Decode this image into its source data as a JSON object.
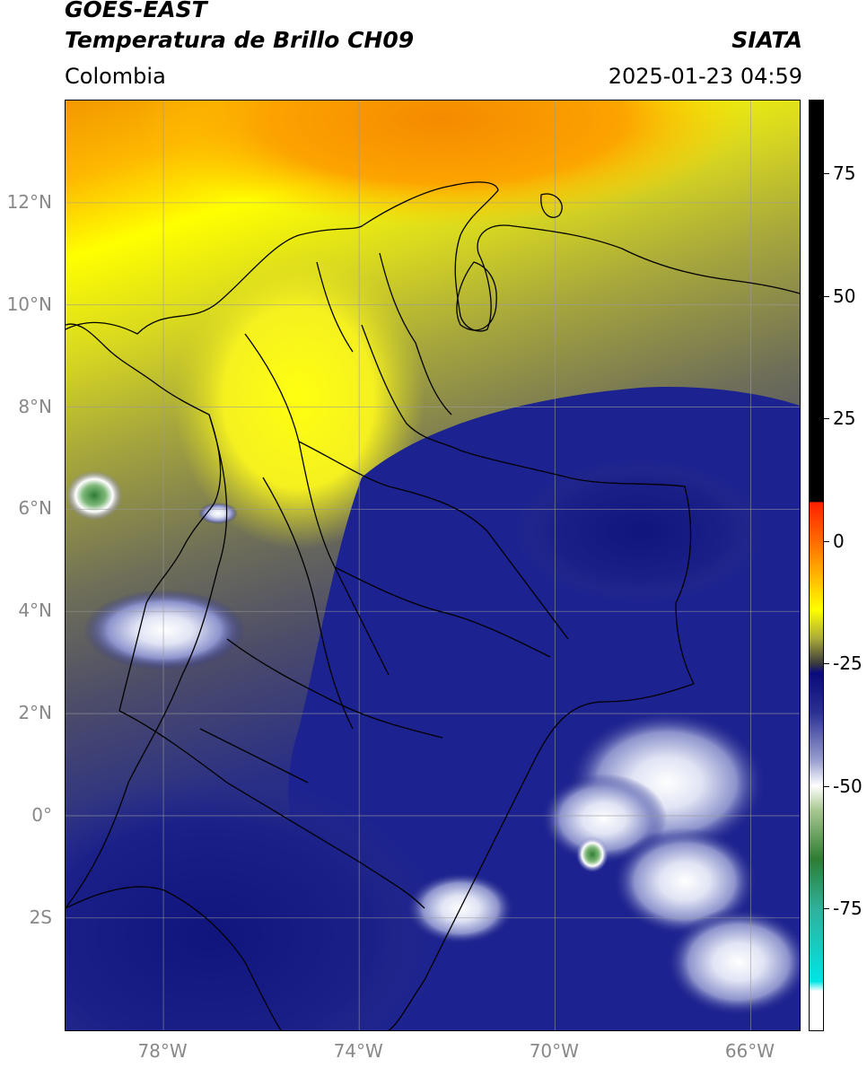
{
  "header": {
    "title_line1": "GOES-EAST",
    "title_line2": "Temperatura de Brillo CH09",
    "org": "SIATA",
    "region": "Colombia",
    "timestamp": "2025-01-23 04:59"
  },
  "map": {
    "lon_range": [
      -80,
      -65
    ],
    "lat_range": [
      -4.2,
      14
    ],
    "lat_ticks": [
      {
        "value": 12,
        "label": "12°N"
      },
      {
        "value": 10,
        "label": "10°N"
      },
      {
        "value": 8,
        "label": "8°N"
      },
      {
        "value": 6,
        "label": "6°N"
      },
      {
        "value": 4,
        "label": "4°N"
      },
      {
        "value": 2,
        "label": "2°N"
      },
      {
        "value": 0,
        "label": "0°"
      },
      {
        "value": -2,
        "label": "2S"
      }
    ],
    "lon_ticks": [
      {
        "value": -78,
        "label": "78°W"
      },
      {
        "value": -74,
        "label": "74°W"
      },
      {
        "value": -70,
        "label": "70°W"
      },
      {
        "value": -66,
        "label": "66°W"
      }
    ],
    "grid": true
  },
  "colorbar": {
    "range": [
      -100,
      90
    ],
    "ticks": [
      {
        "value": 75,
        "label": "75"
      },
      {
        "value": 50,
        "label": "50"
      },
      {
        "value": 25,
        "label": "25"
      },
      {
        "value": 0,
        "label": "0"
      },
      {
        "value": -25,
        "label": "-25"
      },
      {
        "value": -50,
        "label": "-50"
      },
      {
        "value": -75,
        "label": "-75"
      }
    ],
    "stops": [
      {
        "value": 90,
        "color": "#000000"
      },
      {
        "value": 8,
        "color": "#000000"
      },
      {
        "value": 7.9,
        "color": "#ff2000"
      },
      {
        "value": 0,
        "color": "#ff6a00"
      },
      {
        "value": -8,
        "color": "#ffc000"
      },
      {
        "value": -14,
        "color": "#ffff00"
      },
      {
        "value": -20,
        "color": "#a9a93a"
      },
      {
        "value": -25,
        "color": "#3c3c3c"
      },
      {
        "value": -27,
        "color": "#0a0a7a"
      },
      {
        "value": -35,
        "color": "#2a3090"
      },
      {
        "value": -45,
        "color": "#9aa0d0"
      },
      {
        "value": -50,
        "color": "#ffffff"
      },
      {
        "value": -55,
        "color": "#a8c890"
      },
      {
        "value": -65,
        "color": "#2e7d32"
      },
      {
        "value": -75,
        "color": "#2fb09a"
      },
      {
        "value": -90,
        "color": "#00e5e5"
      },
      {
        "value": -92,
        "color": "#ffffff"
      },
      {
        "value": -100,
        "color": "#ffffff"
      }
    ]
  }
}
